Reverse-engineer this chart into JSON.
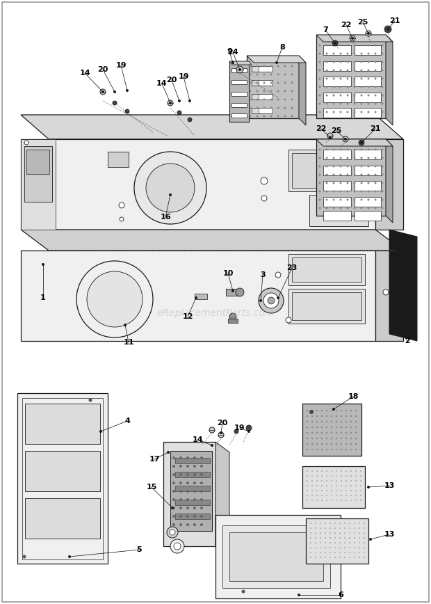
{
  "bg_color": "#ffffff",
  "line_color": "#1a1a1a",
  "gray_light": "#e8e8e8",
  "gray_mid": "#c8c8c8",
  "gray_dark": "#888888",
  "gray_stipple": "#a0a0a0",
  "black": "#111111",
  "watermark_text": "eReplacementParts.com",
  "watermark_color": "#bbbbbb",
  "figsize": [
    6.2,
    8.68
  ],
  "dpi": 100
}
